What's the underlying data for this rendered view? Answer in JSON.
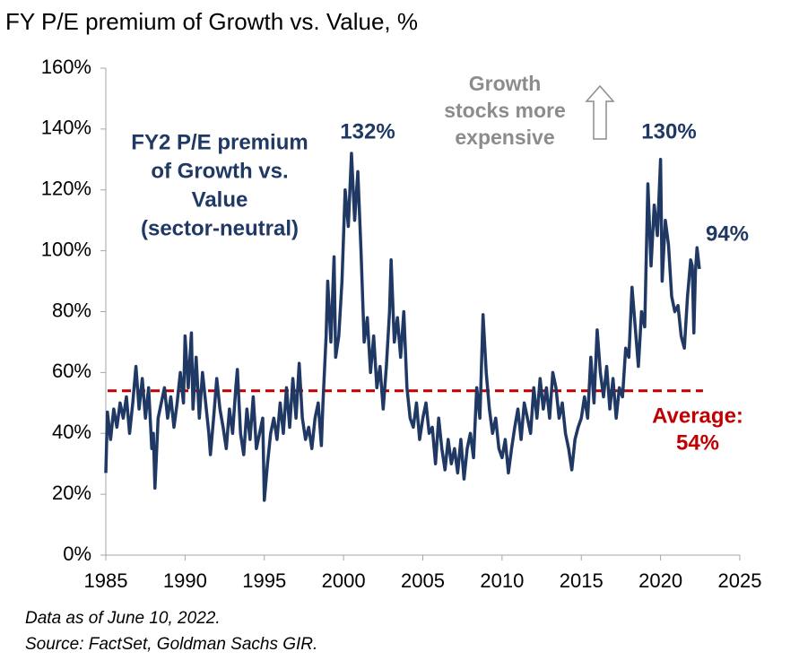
{
  "chart_data": {
    "type": "line",
    "title": "FY P/E premium of Growth vs. Value, %",
    "color": "#1f3864",
    "x": [
      1985.0,
      1985.1,
      1985.3,
      1985.5,
      1985.7,
      1985.9,
      1986.1,
      1986.3,
      1986.5,
      1986.7,
      1986.9,
      1987.1,
      1987.3,
      1987.5,
      1987.7,
      1987.9,
      1988.0,
      1988.1,
      1988.3,
      1988.5,
      1988.7,
      1988.9,
      1989.1,
      1989.3,
      1989.5,
      1989.7,
      1989.9,
      1990.0,
      1990.2,
      1990.4,
      1990.5,
      1990.7,
      1990.9,
      1991.1,
      1991.3,
      1991.5,
      1991.6,
      1991.8,
      1992.0,
      1992.2,
      1992.4,
      1992.6,
      1992.8,
      1993.0,
      1993.2,
      1993.3,
      1993.5,
      1993.7,
      1993.9,
      1994.1,
      1994.3,
      1994.5,
      1994.7,
      1994.9,
      1995.0,
      1995.2,
      1995.4,
      1995.6,
      1995.8,
      1996.0,
      1996.2,
      1996.4,
      1996.6,
      1996.8,
      1997.0,
      1997.2,
      1997.4,
      1997.6,
      1997.8,
      1998.0,
      1998.2,
      1998.4,
      1998.6,
      1998.7,
      1998.9,
      1999.0,
      1999.2,
      1999.4,
      1999.5,
      1999.7,
      1999.9,
      2000.1,
      2000.3,
      2000.5,
      2000.7,
      2000.9,
      2001.1,
      2001.3,
      2001.5,
      2001.7,
      2001.9,
      2002.1,
      2002.3,
      2002.5,
      2002.7,
      2002.9,
      2003.0,
      2003.2,
      2003.4,
      2003.6,
      2003.8,
      2004.0,
      2004.2,
      2004.4,
      2004.6,
      2004.8,
      2005.0,
      2005.2,
      2005.4,
      2005.6,
      2005.8,
      2006.0,
      2006.2,
      2006.4,
      2006.6,
      2006.8,
      2007.0,
      2007.2,
      2007.4,
      2007.6,
      2007.8,
      2008.0,
      2008.2,
      2008.4,
      2008.6,
      2008.8,
      2009.0,
      2009.2,
      2009.4,
      2009.6,
      2009.8,
      2010.0,
      2010.2,
      2010.4,
      2010.6,
      2010.8,
      2011.0,
      2011.2,
      2011.4,
      2011.6,
      2011.8,
      2012.0,
      2012.2,
      2012.4,
      2012.6,
      2012.8,
      2013.0,
      2013.2,
      2013.4,
      2013.6,
      2013.8,
      2014.0,
      2014.2,
      2014.4,
      2014.6,
      2014.8,
      2015.0,
      2015.2,
      2015.4,
      2015.6,
      2015.8,
      2016.0,
      2016.2,
      2016.4,
      2016.6,
      2016.8,
      2017.0,
      2017.2,
      2017.4,
      2017.6,
      2017.8,
      2018.0,
      2018.2,
      2018.4,
      2018.6,
      2018.8,
      2019.0,
      2019.2,
      2019.4,
      2019.6,
      2019.8,
      2020.0,
      2020.1,
      2020.3,
      2020.5,
      2020.7,
      2020.9,
      2021.1,
      2021.3,
      2021.5,
      2021.7,
      2021.9,
      2022.0,
      2022.1,
      2022.2,
      2022.3,
      2022.45
    ],
    "values": [
      27,
      47,
      38,
      48,
      42,
      50,
      45,
      52,
      40,
      50,
      62,
      48,
      58,
      45,
      55,
      35,
      40,
      22,
      45,
      50,
      55,
      45,
      52,
      42,
      50,
      60,
      50,
      72,
      55,
      73,
      48,
      65,
      45,
      60,
      50,
      40,
      33,
      45,
      58,
      48,
      42,
      35,
      48,
      40,
      55,
      61,
      40,
      33,
      48,
      38,
      52,
      35,
      40,
      45,
      18,
      30,
      40,
      45,
      38,
      50,
      40,
      55,
      42,
      58,
      45,
      63,
      45,
      38,
      42,
      35,
      45,
      50,
      36,
      50,
      72,
      90,
      70,
      98,
      65,
      72,
      90,
      120,
      108,
      132,
      110,
      126,
      100,
      70,
      78,
      60,
      72,
      55,
      62,
      48,
      62,
      80,
      97,
      70,
      78,
      65,
      80,
      55,
      45,
      42,
      50,
      38,
      45,
      50,
      40,
      42,
      30,
      45,
      35,
      28,
      38,
      30,
      35,
      27,
      38,
      25,
      35,
      40,
      32,
      55,
      45,
      79,
      60,
      48,
      40,
      45,
      35,
      32,
      38,
      27,
      35,
      42,
      48,
      38,
      50,
      45,
      40,
      55,
      45,
      58,
      48,
      55,
      45,
      60,
      55,
      45,
      50,
      40,
      35,
      28,
      38,
      42,
      45,
      52,
      45,
      65,
      50,
      74,
      60,
      52,
      62,
      48,
      58,
      45,
      55,
      52,
      68,
      65,
      88,
      75,
      62,
      80,
      75,
      122,
      95,
      115,
      105,
      130,
      90,
      110,
      102,
      85,
      80,
      82,
      72,
      68,
      85,
      97,
      95,
      73,
      93,
      101,
      94
    ],
    "xlim": [
      1985,
      2025
    ],
    "xticks": [
      1985,
      1990,
      1995,
      2000,
      2005,
      2010,
      2015,
      2020,
      2025
    ],
    "ylim": [
      0,
      160
    ],
    "yticks": [
      {
        "value": 0,
        "label": "0%"
      },
      {
        "value": 20,
        "label": "20%"
      },
      {
        "value": 40,
        "label": "40%"
      },
      {
        "value": 60,
        "label": "60%"
      },
      {
        "value": 80,
        "label": "80%"
      },
      {
        "value": 100,
        "label": "100%"
      },
      {
        "value": 120,
        "label": "120%"
      },
      {
        "value": 140,
        "label": "140%"
      },
      {
        "value": 160,
        "label": "160%"
      }
    ],
    "average": {
      "value": 54,
      "label_lines": [
        "Average:",
        "54%"
      ],
      "color": "#c00000"
    },
    "annotations": {
      "series_label": [
        "FY2 P/E premium",
        "of Growth vs.",
        "Value",
        "(sector-neutral)"
      ],
      "peaks": [
        "132%",
        "130%",
        "94%"
      ],
      "note": [
        "Growth",
        "stocks more",
        "expensive"
      ]
    },
    "footnotes": [
      "Data as of June 10, 2022.",
      "Source: FactSet, Goldman Sachs GIR."
    ]
  }
}
